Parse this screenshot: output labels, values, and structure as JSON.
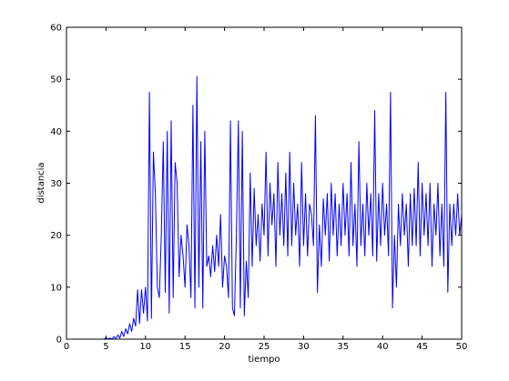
{
  "chart_data": {
    "type": "line",
    "xlabel": "tiempo",
    "ylabel": "distancia",
    "xlim": [
      0,
      50
    ],
    "ylim": [
      0,
      60
    ],
    "xticks": [
      0,
      5,
      10,
      15,
      20,
      25,
      30,
      35,
      40,
      45,
      50
    ],
    "yticks": [
      0,
      10,
      20,
      30,
      40,
      50,
      60
    ],
    "x": [
      0,
      0.25,
      0.5,
      0.75,
      1,
      1.25,
      1.5,
      1.75,
      2,
      2.25,
      2.5,
      2.75,
      3,
      3.25,
      3.5,
      3.75,
      4,
      4.25,
      4.5,
      4.75,
      5,
      5.25,
      5.5,
      5.75,
      6,
      6.25,
      6.5,
      6.75,
      7,
      7.25,
      7.5,
      7.75,
      8,
      8.25,
      8.5,
      8.75,
      9,
      9.25,
      9.5,
      9.75,
      10,
      10.25,
      10.5,
      10.75,
      11,
      11.25,
      11.5,
      11.75,
      12,
      12.25,
      12.5,
      12.75,
      13,
      13.25,
      13.5,
      13.75,
      14,
      14.25,
      14.5,
      14.75,
      15,
      15.25,
      15.5,
      15.75,
      16,
      16.25,
      16.5,
      16.75,
      17,
      17.25,
      17.5,
      17.75,
      18,
      18.25,
      18.5,
      18.75,
      19,
      19.25,
      19.5,
      19.75,
      20,
      20.25,
      20.5,
      20.75,
      21,
      21.25,
      21.5,
      21.75,
      22,
      22.25,
      22.5,
      22.75,
      23,
      23.25,
      23.5,
      23.75,
      24,
      24.25,
      24.5,
      24.75,
      25,
      25.25,
      25.5,
      25.75,
      26,
      26.25,
      26.5,
      26.75,
      27,
      27.25,
      27.5,
      27.75,
      28,
      28.25,
      28.5,
      28.75,
      29,
      29.25,
      29.5,
      29.75,
      30,
      30.25,
      30.5,
      30.75,
      31,
      31.25,
      31.5,
      31.75,
      32,
      32.25,
      32.5,
      32.75,
      33,
      33.25,
      33.5,
      33.75,
      34,
      34.25,
      34.5,
      34.75,
      35,
      35.25,
      35.5,
      35.75,
      36,
      36.25,
      36.5,
      36.75,
      37,
      37.25,
      37.5,
      37.75,
      38,
      38.25,
      38.5,
      38.75,
      39,
      39.25,
      39.5,
      39.75,
      40,
      40.25,
      40.5,
      40.75,
      41,
      41.25,
      41.5,
      41.75,
      42,
      42.25,
      42.5,
      42.75,
      43,
      43.25,
      43.5,
      43.75,
      44,
      44.25,
      44.5,
      44.75,
      45,
      45.25,
      45.5,
      45.75,
      46,
      46.25,
      46.5,
      46.75,
      47,
      47.25,
      47.5,
      47.75,
      48,
      48.25,
      48.5,
      48.75,
      49,
      49.25,
      49.5,
      49.75,
      50
    ],
    "series": [
      {
        "color": "#0000ff",
        "values": [
          0,
          0,
          0,
          0,
          0,
          0,
          0,
          0,
          0,
          0,
          0,
          0,
          0,
          0,
          0,
          0,
          0,
          0,
          0,
          0,
          0.3,
          0,
          0.2,
          0,
          0.5,
          0.1,
          0.8,
          0.2,
          1.5,
          0.5,
          2,
          1,
          3,
          1.5,
          4,
          2.5,
          9.5,
          3,
          9.5,
          5,
          10,
          3.5,
          47.5,
          4,
          36,
          28,
          10,
          8,
          20,
          38,
          9,
          40,
          5,
          42,
          8,
          34,
          30,
          12,
          20,
          16,
          10,
          22,
          18,
          8,
          45,
          6,
          50.5,
          10,
          38,
          6,
          40,
          14,
          16,
          12,
          18,
          13,
          20,
          14,
          24,
          10,
          16,
          14,
          8,
          42,
          6,
          4.5,
          20,
          42,
          6,
          40,
          4.5,
          15,
          8,
          32,
          14,
          29,
          18,
          24,
          15,
          26,
          20,
          36,
          16,
          30,
          22,
          28,
          14,
          34,
          20,
          28,
          18,
          32,
          16,
          36,
          18,
          30,
          20,
          26,
          14,
          34,
          18,
          28,
          16,
          26,
          24,
          18,
          43,
          9,
          22,
          14,
          27,
          20,
          28,
          15,
          30,
          20,
          28,
          16,
          26,
          18,
          30,
          20,
          28,
          16,
          34,
          18,
          26,
          14,
          38,
          18,
          26,
          16,
          30,
          20,
          28,
          16,
          44,
          15,
          28,
          18,
          30,
          20,
          26,
          16,
          47.5,
          6,
          20,
          10,
          26,
          18,
          28,
          20,
          26,
          14,
          28,
          18,
          29,
          18,
          34,
          16,
          30,
          20,
          28,
          18,
          30,
          14,
          26,
          20,
          30,
          16,
          26,
          14,
          47.5,
          9,
          26,
          18,
          26,
          20,
          28,
          20,
          24
        ]
      }
    ]
  }
}
